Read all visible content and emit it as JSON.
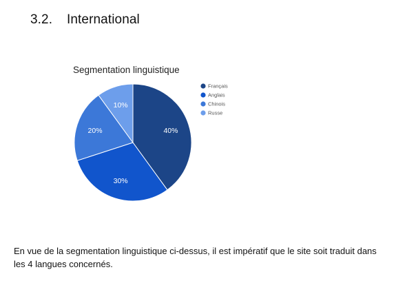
{
  "section": {
    "number": "3.2.",
    "title": "International"
  },
  "chart_data": {
    "type": "pie",
    "title": "Segmentation linguistique",
    "legend_position": "right",
    "slices": [
      {
        "label": "Français",
        "value": 40,
        "display": "40%",
        "color": "#1c4587"
      },
      {
        "label": "Anglais",
        "value": 30,
        "display": "30%",
        "color": "#1155cc"
      },
      {
        "label": "Chinois",
        "value": 20,
        "display": "20%",
        "color": "#3c78d8"
      },
      {
        "label": "Russe",
        "value": 10,
        "display": "10%",
        "color": "#6d9eeb"
      }
    ]
  },
  "body": {
    "paragraph": "En vue de la segmentation linguistique ci-dessus, il est impératif que le site soit traduit dans les 4 langues concernés."
  }
}
